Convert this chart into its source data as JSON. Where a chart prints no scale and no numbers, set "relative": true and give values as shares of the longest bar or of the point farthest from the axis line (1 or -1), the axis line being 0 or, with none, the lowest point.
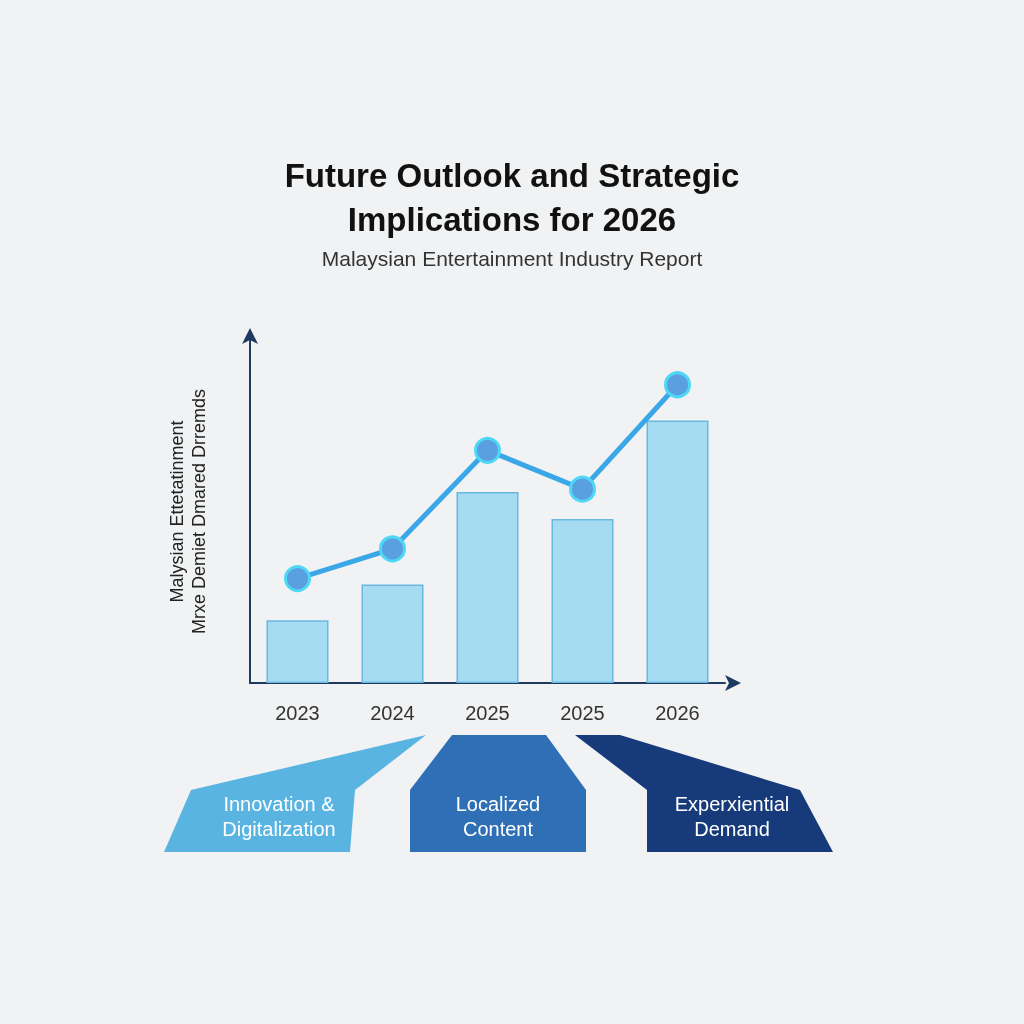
{
  "chart_data": {
    "type": "bar",
    "title": "Future Outlook and Strategic\nImplications for 2026",
    "subtitle": "Malaysian Entertainment Industry Report",
    "ylabel": "Malysian Ettetatinment\nMrxe Demiet Dmared Drremds",
    "categories": [
      "2023",
      "2024",
      "2025",
      "2025",
      "2026"
    ],
    "relative": true,
    "series": [
      {
        "color": "#a6dcf2",
        "values": [
          0.21,
          0.33,
          0.64,
          0.55,
          0.88
        ]
      },
      {
        "type": "line",
        "color": "#3aa8e8",
        "values": [
          0.35,
          0.45,
          0.78,
          0.65,
          1
        ]
      }
    ],
    "marker": "circle",
    "line_style": "solid",
    "grid": false,
    "annotations": [
      "Innovation & Digitalization",
      "Localized Content",
      "Experxiential Demand"
    ]
  }
}
